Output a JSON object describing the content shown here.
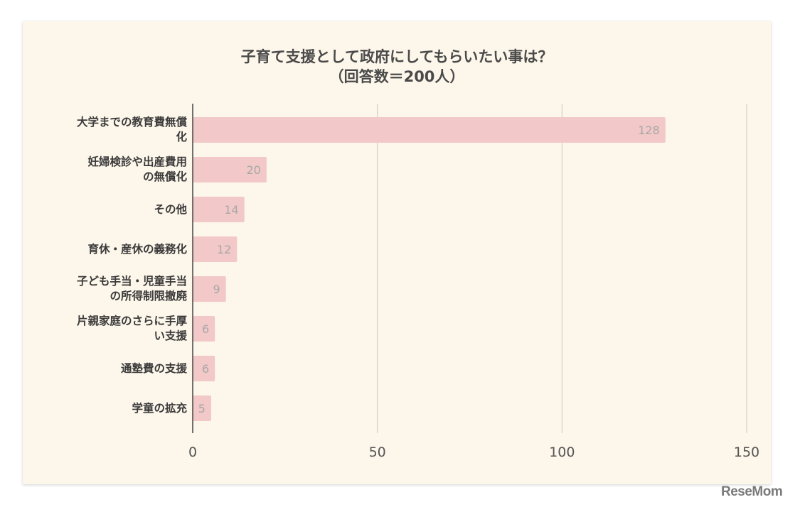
{
  "chart_data": {
    "type": "bar",
    "orientation": "horizontal",
    "title": [
      "子育て支援として政府にしてもらいたい事は？",
      "（回答数＝200人）"
    ],
    "categories": [
      [
        "大学までの教育費無償",
        "化"
      ],
      [
        "妊婦検診や出産費用",
        "の無償化"
      ],
      [
        "その他"
      ],
      [
        "育休・産休の義務化"
      ],
      [
        "子ども手当・児童手当",
        "の所得制限撤廃"
      ],
      [
        "片親家庭のさらに手厚",
        "い支援"
      ],
      [
        "通塾費の支援"
      ],
      [
        "学童の拡充"
      ]
    ],
    "values": [
      128,
      20,
      14,
      12,
      9,
      6,
      6,
      5
    ],
    "xlim": [
      0,
      150
    ],
    "xticks": [
      0,
      50,
      100,
      150
    ],
    "grid": true,
    "bar_color": "#f2c8c8",
    "value_label_color": "#a8a8a8"
  },
  "watermark": "ReseMom"
}
